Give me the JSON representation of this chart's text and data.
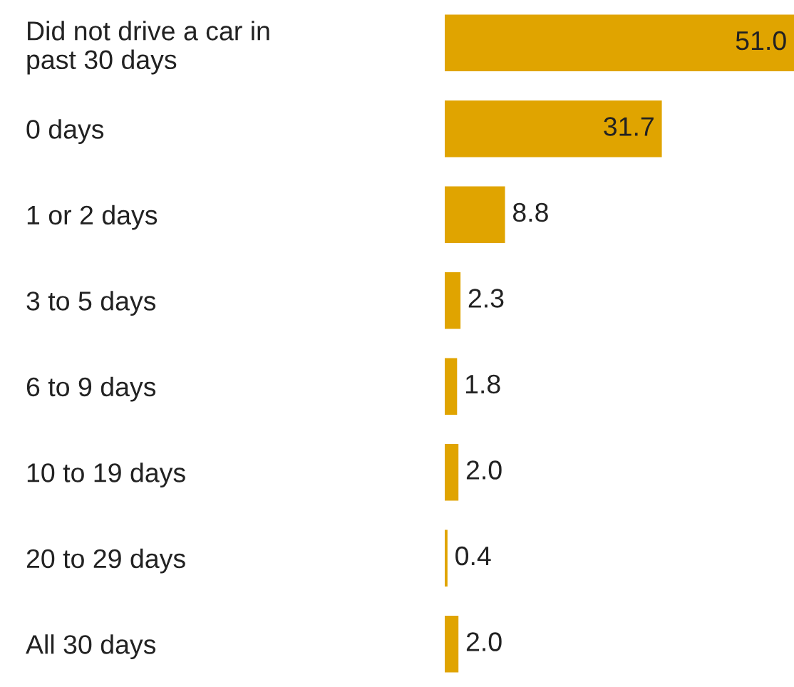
{
  "chart_data": {
    "type": "bar",
    "orientation": "horizontal",
    "categories": [
      "Did not drive a car in\npast 30 days",
      "0 days",
      "1 or 2 days",
      "3 to 5 days",
      "6 to 9 days",
      "10 to 19 days",
      "20 to 29 days",
      "All 30 days"
    ],
    "values": [
      51.0,
      31.7,
      8.8,
      2.3,
      1.8,
      2.0,
      0.4,
      2.0
    ],
    "value_labels": [
      "51.0",
      "31.7",
      "8.8",
      "2.3",
      "1.8",
      "2.0",
      "0.4",
      "2.0"
    ],
    "color": "#e0a400",
    "grid": false,
    "legend": false
  }
}
